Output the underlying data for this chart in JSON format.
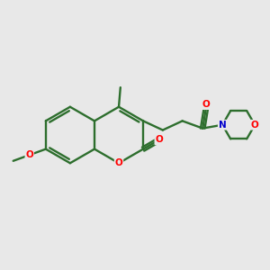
{
  "background_color": "#e8e8e8",
  "bond_color": "#2d6e2d",
  "oxygen_color": "#ff0000",
  "nitrogen_color": "#0000cc",
  "line_width": 1.7,
  "figsize": [
    3.0,
    3.0
  ],
  "dpi": 100,
  "xlim": [
    -2.3,
    2.6
  ],
  "ylim": [
    -1.15,
    1.15
  ]
}
